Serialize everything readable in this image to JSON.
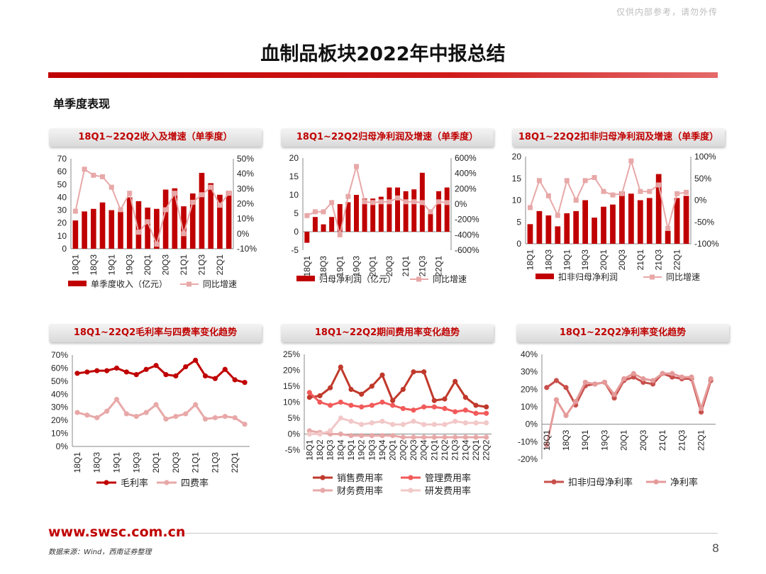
{
  "watermark": "仅供内部参考，请勿外传",
  "page_title": "血制品板块2022年中报总结",
  "section_title": "单季度表现",
  "footer": {
    "url": "www.swsc.com.cn",
    "source": "数据来源：Wind，西南证券整理",
    "page_number": "8"
  },
  "colors": {
    "primary_red": "#c00000",
    "light_pink": "#e8a8a8",
    "salmon": "#f25a5a",
    "pale": "#f2c8c8"
  },
  "panels": [
    {
      "title": "18Q1~22Q2收入及增速（单季度）"
    },
    {
      "title": "18Q1~22Q2归母净利润及增速（单季度）"
    },
    {
      "title": "18Q1~22Q2扣非归母净利润及增速（单季度）"
    },
    {
      "title": "18Q1~22Q2毛利率与四费率变化趋势"
    },
    {
      "title": "18Q1~22Q2期间费用率变化趋势"
    },
    {
      "title": "18Q1~22Q2净利率变化趋势"
    }
  ],
  "chart_data": [
    {
      "type": "bar",
      "categories": [
        "18Q1",
        "18Q2",
        "18Q3",
        "18Q4",
        "19Q1",
        "19Q2",
        "19Q3",
        "19Q4",
        "20Q1",
        "20Q2",
        "20Q3",
        "20Q4",
        "21Q1",
        "21Q2",
        "21Q3",
        "21Q4",
        "22Q1",
        "22Q2"
      ],
      "tick_labels": [
        "18Q1",
        "18Q3",
        "19Q1",
        "19Q3",
        "20Q1",
        "20Q3",
        "21Q1",
        "21Q3",
        "22Q1"
      ],
      "left_ticks": [
        "0",
        "10",
        "20",
        "30",
        "40",
        "50",
        "60",
        "70"
      ],
      "right_ticks": [
        "-10%",
        "0%",
        "10%",
        "20%",
        "30%",
        "40%",
        "50%"
      ],
      "ylim": [
        0,
        70
      ],
      "y2lim": [
        -10,
        50
      ],
      "series": [
        {
          "name": "单季度收入（亿元）",
          "type": "bar",
          "axis": "left",
          "values": [
            22,
            29,
            31,
            36,
            30,
            29,
            40,
            37,
            32,
            31,
            46,
            47,
            33,
            43,
            59,
            51,
            42,
            45
          ]
        },
        {
          "name": "同比增速",
          "type": "line",
          "axis": "right",
          "values": [
            15,
            43,
            39,
            38,
            31,
            16,
            27,
            1,
            8,
            -7,
            16,
            27,
            0,
            21,
            26,
            31,
            19,
            27
          ]
        }
      ]
    },
    {
      "type": "bar",
      "categories": [
        "18Q1",
        "18Q2",
        "18Q3",
        "18Q4",
        "19Q1",
        "19Q2",
        "19Q3",
        "19Q4",
        "20Q1",
        "20Q2",
        "20Q3",
        "20Q4",
        "21Q1",
        "21Q2",
        "21Q3",
        "21Q4",
        "22Q1",
        "22Q2"
      ],
      "tick_labels": [
        "18Q1",
        "18Q3",
        "19Q1",
        "19Q3",
        "20Q1",
        "20Q3",
        "21Q1",
        "21Q3",
        "22Q1"
      ],
      "left_ticks": [
        "-5",
        "0",
        "5",
        "10",
        "15",
        "20"
      ],
      "right_ticks": [
        "-600%",
        "-400%",
        "-200%",
        "0%",
        "200%",
        "400%",
        "600%"
      ],
      "ylim": [
        -5,
        20
      ],
      "y2lim": [
        -600,
        600
      ],
      "series": [
        {
          "name": "归母净利润（亿元）",
          "type": "bar",
          "axis": "left",
          "values": [
            -3,
            4,
            2,
            4,
            7.5,
            8,
            10,
            9,
            9,
            9.5,
            12,
            12,
            11,
            11.5,
            16,
            6,
            11,
            12
          ]
        },
        {
          "name": "同比增速",
          "type": "line",
          "axis": "right",
          "values": [
            -150,
            -100,
            -100,
            20,
            -400,
            100,
            490,
            30,
            20,
            30,
            30,
            80,
            30,
            30,
            20,
            -100,
            30,
            20
          ]
        }
      ]
    },
    {
      "type": "bar",
      "categories": [
        "18Q1",
        "18Q2",
        "18Q3",
        "18Q4",
        "19Q1",
        "19Q2",
        "19Q3",
        "19Q4",
        "20Q1",
        "20Q2",
        "20Q3",
        "20Q4",
        "21Q1",
        "21Q2",
        "21Q3",
        "21Q4",
        "22Q1",
        "22Q2"
      ],
      "tick_labels": [
        "18Q1",
        "18Q3",
        "19Q1",
        "19Q3",
        "20Q1",
        "20Q3",
        "21Q1",
        "21Q3",
        "22Q1"
      ],
      "left_ticks": [
        "0",
        "5",
        "10",
        "15",
        "20"
      ],
      "right_ticks": [
        "-100%",
        "-50%",
        "0%",
        "50%",
        "100%"
      ],
      "ylim": [
        0,
        20
      ],
      "y2lim": [
        -100,
        100
      ],
      "series": [
        {
          "name": "扣非归母净利润",
          "type": "bar",
          "axis": "left",
          "values": [
            4.5,
            7.5,
            6.5,
            4,
            7,
            7.5,
            10,
            6,
            8.5,
            9,
            12,
            11.5,
            10,
            10.5,
            16,
            3,
            10.5,
            11
          ]
        },
        {
          "name": "同比增速",
          "type": "line",
          "axis": "right",
          "values": [
            -17,
            45,
            10,
            -35,
            45,
            0,
            45,
            52,
            20,
            12,
            15,
            90,
            20,
            20,
            35,
            -65,
            15,
            18
          ]
        }
      ]
    },
    {
      "type": "line",
      "categories": [
        "18Q1",
        "18Q2",
        "18Q3",
        "18Q4",
        "19Q1",
        "19Q2",
        "19Q3",
        "19Q4",
        "20Q1",
        "20Q2",
        "20Q3",
        "20Q4",
        "21Q1",
        "21Q2",
        "21Q3",
        "21Q4",
        "22Q1",
        "22Q2"
      ],
      "tick_labels": [
        "18Q1",
        "18Q3",
        "19Q1",
        "19Q3",
        "20Q1",
        "20Q3",
        "21Q1",
        "21Q3",
        "22Q1"
      ],
      "left_ticks": [
        "0%",
        "10%",
        "20%",
        "30%",
        "40%",
        "50%",
        "60%",
        "70%"
      ],
      "ylim": [
        0,
        70
      ],
      "series": [
        {
          "name": "毛利率",
          "values": [
            56,
            57,
            58,
            58,
            60,
            57,
            55,
            59,
            62,
            55,
            54,
            61,
            66,
            54,
            52,
            59,
            51,
            49
          ]
        },
        {
          "name": "四费率",
          "values": [
            26,
            24,
            22,
            27,
            36,
            25,
            23,
            26,
            32,
            21,
            23,
            25,
            32,
            21,
            22,
            23,
            22,
            17
          ]
        }
      ]
    },
    {
      "type": "line",
      "categories": [
        "18Q1",
        "18Q2",
        "18Q3",
        "18Q4",
        "19Q1",
        "19Q2",
        "19Q3",
        "19Q4",
        "20Q1",
        "20Q2",
        "20Q3",
        "20Q4",
        "21Q1",
        "21Q2",
        "21Q3",
        "21Q4",
        "22Q1",
        "22Q2"
      ],
      "tick_labels": [
        "18Q1",
        "18Q2",
        "18Q3",
        "18Q4",
        "19Q1",
        "19Q2",
        "19Q3",
        "19Q4",
        "20Q1",
        "20Q2",
        "20Q3",
        "20Q4",
        "21Q1",
        "21Q2",
        "21Q3",
        "21Q4",
        "22Q1",
        "22Q2"
      ],
      "left_ticks": [
        "-5%",
        "0%",
        "5%",
        "10%",
        "15%",
        "20%",
        "25%"
      ],
      "ylim": [
        -5,
        25
      ],
      "series": [
        {
          "name": "销售费用率",
          "values": [
            11.5,
            12,
            14.5,
            21,
            14,
            12.5,
            15,
            18.5,
            10.5,
            14,
            19.5,
            19.5,
            10.5,
            11,
            16.5,
            11.5,
            9,
            8.5
          ]
        },
        {
          "name": "管理费用率",
          "values": [
            13,
            10,
            9,
            10,
            9,
            8.5,
            9,
            10,
            9,
            8,
            7.5,
            8.5,
            8.5,
            8,
            7,
            7.5,
            6.5,
            6.5
          ]
        },
        {
          "name": "财务费用率",
          "values": [
            1,
            0.5,
            0,
            0,
            -0.5,
            -0.5,
            -0.5,
            -0.5,
            -0.5,
            -1,
            -1,
            -1,
            -1,
            -1,
            -1,
            -1,
            -1,
            -1
          ]
        },
        {
          "name": "研发费用率",
          "values": [
            0,
            0,
            1,
            5,
            4,
            3,
            3.5,
            4,
            3,
            3,
            4,
            3,
            3,
            3,
            4,
            3.5,
            3.5,
            3.5
          ]
        }
      ]
    },
    {
      "type": "line",
      "categories": [
        "18Q1",
        "18Q2",
        "18Q3",
        "18Q4",
        "19Q1",
        "19Q2",
        "19Q3",
        "19Q4",
        "20Q1",
        "20Q2",
        "20Q3",
        "20Q4",
        "21Q1",
        "21Q2",
        "21Q3",
        "21Q4",
        "22Q1",
        "22Q2"
      ],
      "tick_labels": [
        "18Q1",
        "18Q3",
        "19Q1",
        "19Q3",
        "20Q1",
        "20Q3",
        "21Q1",
        "21Q3",
        "22Q1"
      ],
      "left_ticks": [
        "-20%",
        "-10%",
        "0%",
        "10%",
        "20%",
        "30%",
        "40%"
      ],
      "ylim": [
        -20,
        40
      ],
      "series": [
        {
          "name": "扣非归母净利率",
          "values": [
            21,
            25,
            21,
            11,
            22,
            23,
            24,
            15,
            25,
            27,
            24,
            23,
            29,
            27,
            26,
            26,
            7,
            25
          ]
        },
        {
          "name": "净利率",
          "values": [
            -12,
            14,
            5,
            13,
            24,
            23,
            24,
            17,
            26,
            29,
            26,
            25,
            29,
            29,
            27,
            27,
            9,
            26
          ]
        }
      ]
    }
  ]
}
